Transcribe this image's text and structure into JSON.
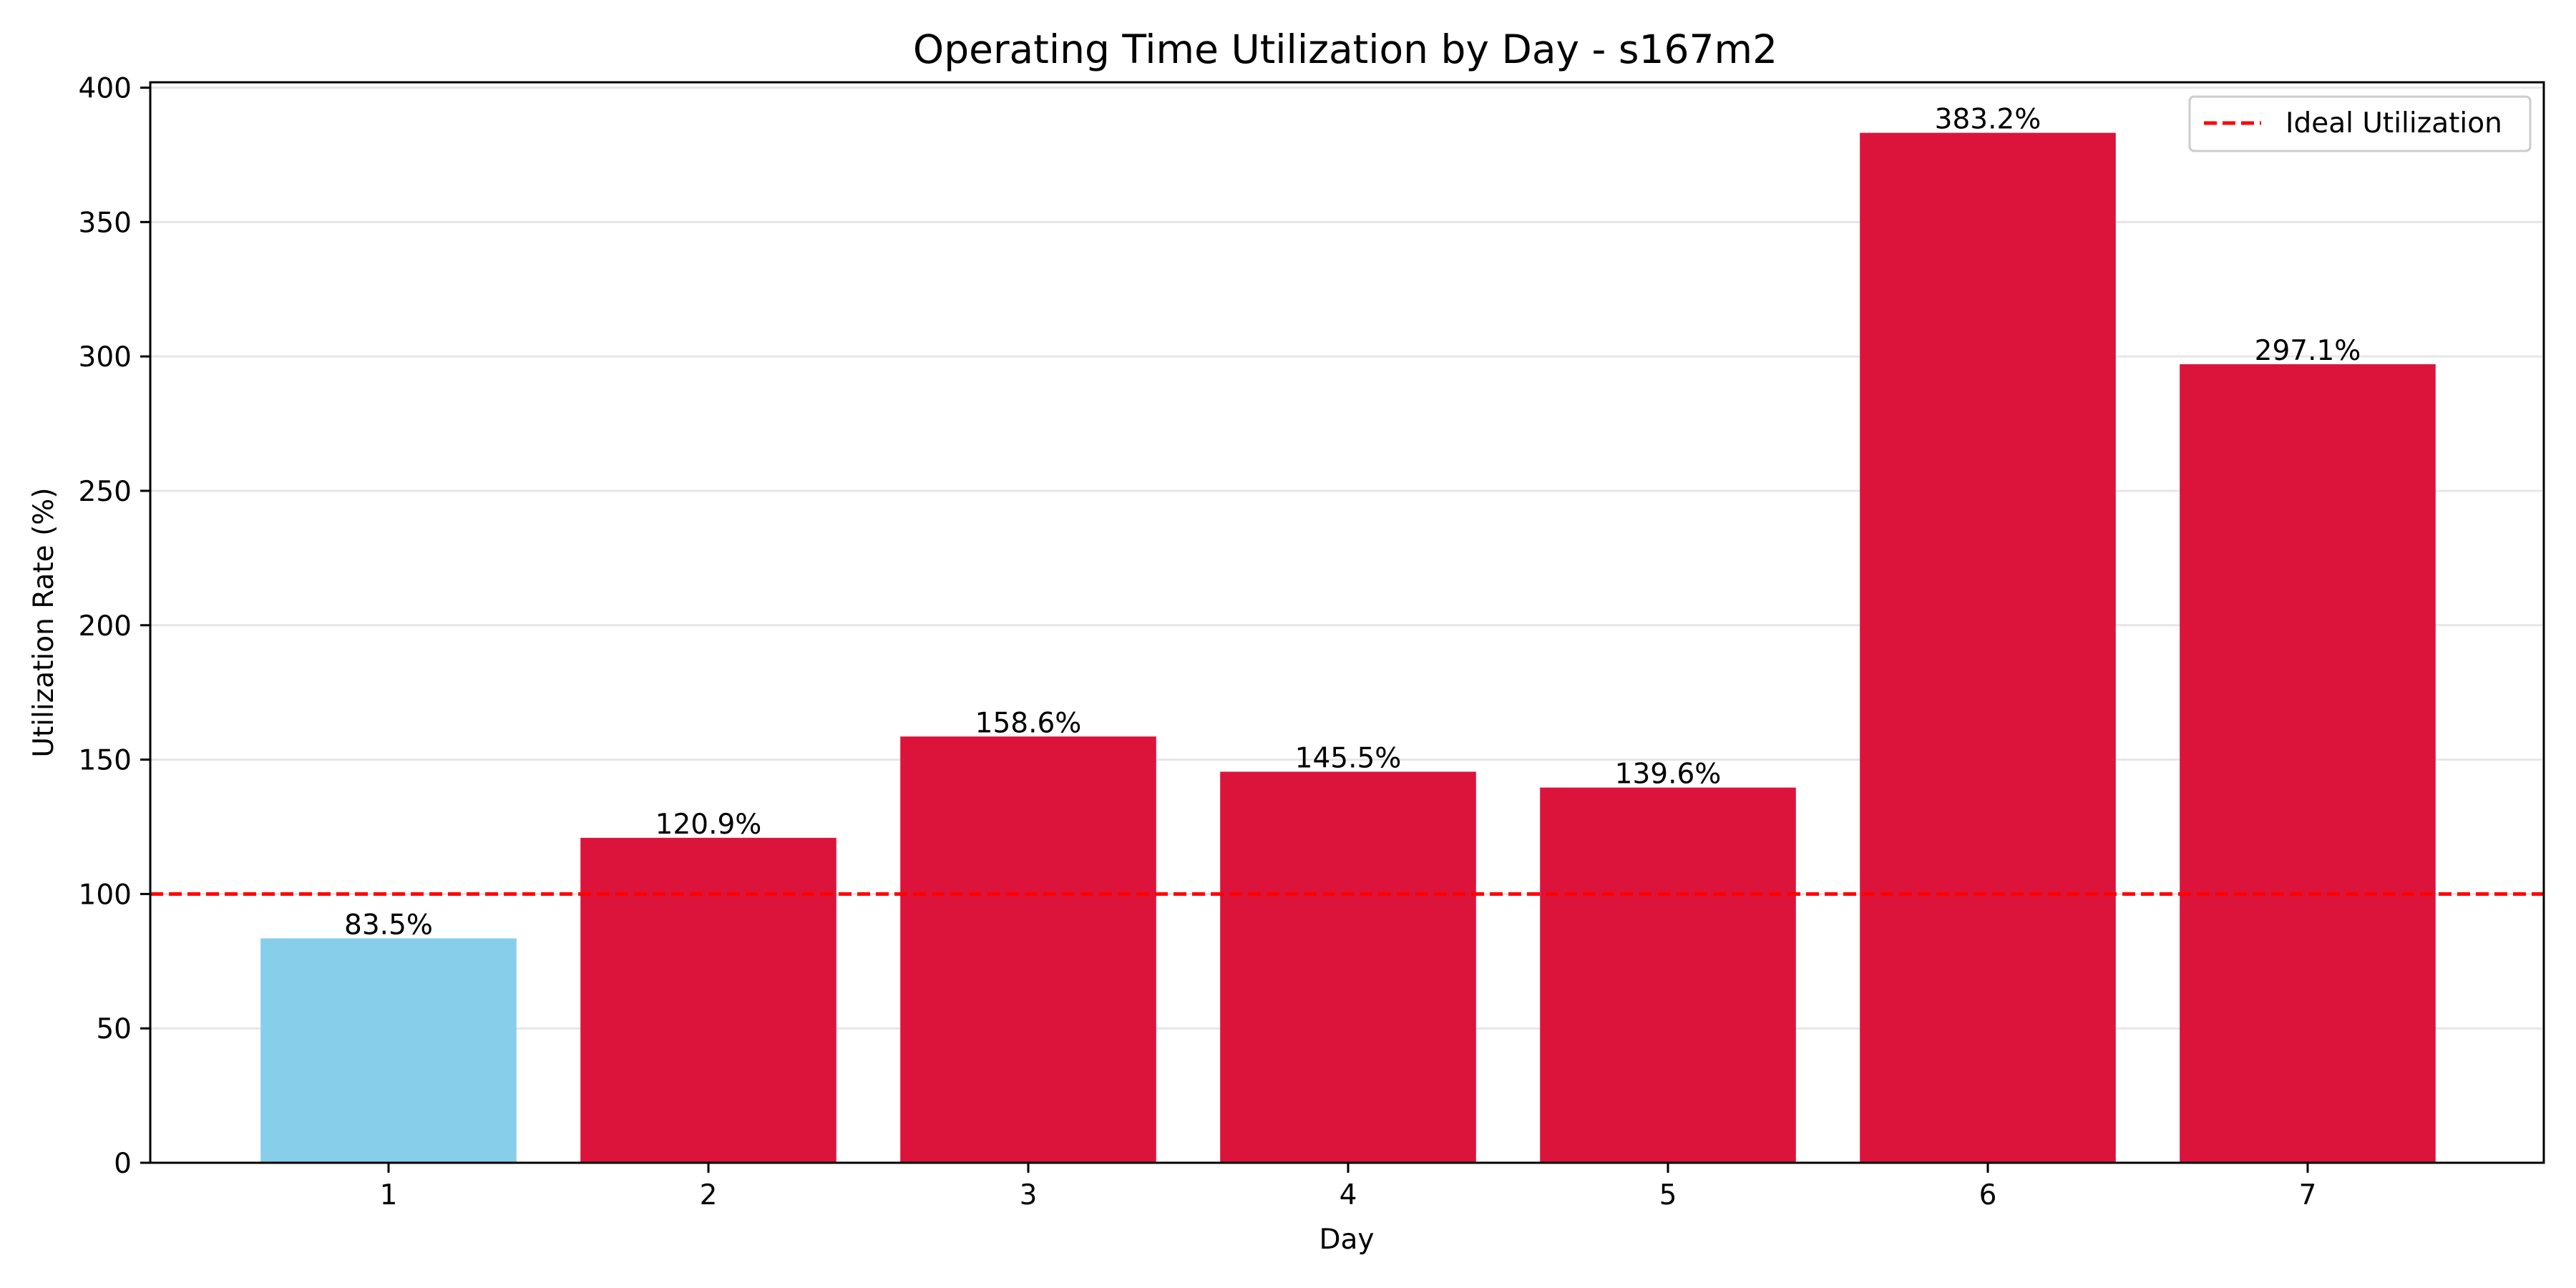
{
  "chart_data": {
    "type": "bar",
    "title": "Operating Time Utilization by Day - s167m2",
    "xlabel": "Day",
    "ylabel": "Utilization Rate (%)",
    "categories": [
      "1",
      "2",
      "3",
      "4",
      "5",
      "6",
      "7"
    ],
    "values": [
      83.5,
      120.9,
      158.6,
      145.5,
      139.6,
      383.2,
      297.1
    ],
    "bar_labels": [
      "83.5%",
      "120.9%",
      "158.6%",
      "145.5%",
      "139.6%",
      "383.2%",
      "297.1%"
    ],
    "ylim": [
      0,
      402
    ],
    "yticks": [
      0,
      50,
      100,
      150,
      200,
      250,
      300,
      350,
      400
    ],
    "grid": "horizontal",
    "reference_line": {
      "name": "Ideal Utilization",
      "value": 100,
      "color": "#ff0000",
      "style": "dashed"
    },
    "colors": {
      "below_ideal": "#87ceeb",
      "above_ideal": "#dc143c"
    },
    "legend": {
      "placement": "top-right",
      "entries": [
        "Ideal Utilization"
      ]
    }
  }
}
